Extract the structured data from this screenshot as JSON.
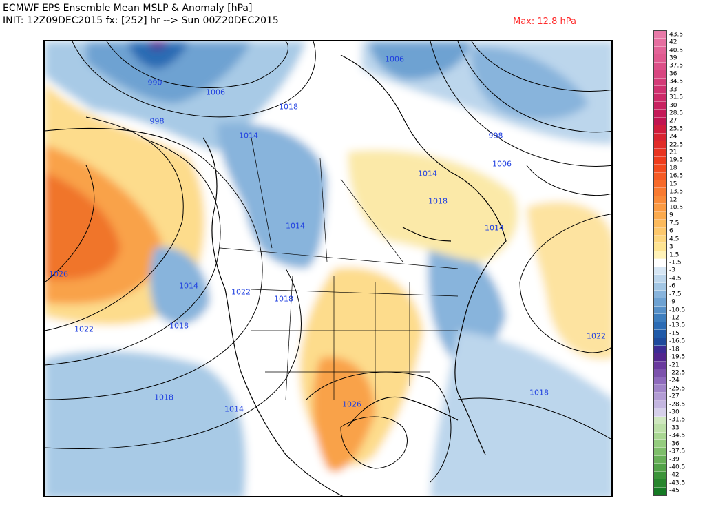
{
  "header": {
    "title_line1": "ECMWF EPS Ensemble Mean MSLP & Anomaly [hPa]",
    "title_line2": "INIT: 12Z09DEC2015 fx: [252] hr --> Sun 00Z20DEC2015",
    "max_label": "Max: 12.8 hPa"
  },
  "isobar_labels": [
    "990",
    "1006",
    "998",
    "1014",
    "1018",
    "1006",
    "998",
    "1006",
    "1014",
    "1018",
    "1014",
    "1014",
    "1026",
    "1014",
    "1022",
    "1018",
    "1022",
    "1018",
    "1022",
    "1018",
    "1026",
    "1018",
    "1014"
  ],
  "colorbar": {
    "ticks": [
      "43.5",
      "42",
      "40.5",
      "39",
      "37.5",
      "36",
      "34.5",
      "33",
      "31.5",
      "30",
      "28.5",
      "27",
      "25.5",
      "24",
      "22.5",
      "21",
      "19.5",
      "18",
      "16.5",
      "15",
      "13.5",
      "12",
      "10.5",
      "9",
      "7.5",
      "6",
      "4.5",
      "3",
      "1.5",
      "-1.5",
      "-3",
      "-4.5",
      "-6",
      "-7.5",
      "-9",
      "-10.5",
      "-12",
      "-13.5",
      "-15",
      "-16.5",
      "-18",
      "-19.5",
      "-21",
      "-22.5",
      "-24",
      "-25.5",
      "-27",
      "-28.5",
      "-30",
      "-31.5",
      "-33",
      "-34.5",
      "-36",
      "-37.5",
      "-39",
      "-40.5",
      "-42",
      "-43.5",
      "-45"
    ],
    "colors": [
      "#e87aa8",
      "#e66fa0",
      "#e36498",
      "#e05a90",
      "#dc5088",
      "#d84680",
      "#d43c78",
      "#d03270",
      "#cc2a68",
      "#c82260",
      "#c41a58",
      "#c01450",
      "#d01c3c",
      "#d82430",
      "#e02c28",
      "#e83420",
      "#ee3c1c",
      "#f24a1e",
      "#f55a24",
      "#f76a2a",
      "#f87a30",
      "#f98a38",
      "#fa9a42",
      "#fbaa4e",
      "#fcba5c",
      "#fdc86c",
      "#fdd67e",
      "#fee492",
      "#fff2b8",
      "#ffffff",
      "#d6e6f4",
      "#bcd6ec",
      "#a2c6e4",
      "#88b4dc",
      "#6ea2d2",
      "#5690c8",
      "#3e7ebe",
      "#2c6cb4",
      "#205aa8",
      "#1e4a9c",
      "#3c2c94",
      "#52268e",
      "#6a3a9e",
      "#7c52ac",
      "#8e6abc",
      "#a084c8",
      "#b29cd4",
      "#c4b6e0",
      "#d6d0ea",
      "#cfe8bf",
      "#bce0a8",
      "#a8d692",
      "#94cc7e",
      "#7ebe6a",
      "#68b058",
      "#52a248",
      "#3c943a",
      "#28862e",
      "#157a24"
    ]
  }
}
